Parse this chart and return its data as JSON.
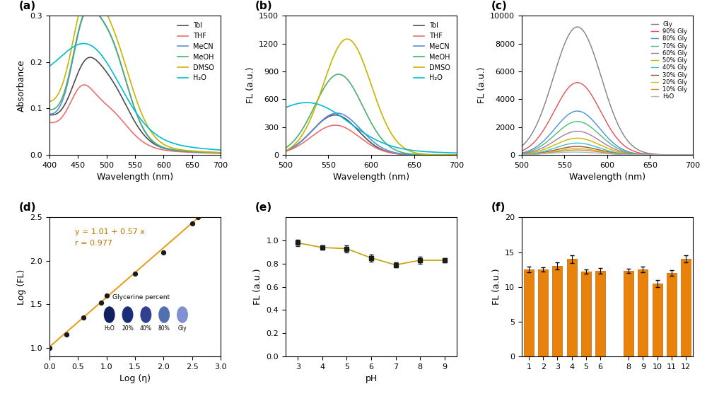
{
  "panel_labels": [
    "(a)",
    "(b)",
    "(c)",
    "(d)",
    "(e)",
    "(f)"
  ],
  "panel_a": {
    "xlabel": "Wavelength (nm)",
    "ylabel": "Absorbance",
    "xlim": [
      400,
      700
    ],
    "ylim": [
      0,
      0.3
    ],
    "yticks": [
      0.0,
      0.1,
      0.2,
      0.3
    ],
    "legend": [
      "Tol",
      "THF",
      "MeCN",
      "MeOH",
      "DMSO",
      "H₂O"
    ],
    "colors": [
      "#4d4d4d",
      "#e87070",
      "#5b8dd9",
      "#4caf6e",
      "#c8b400",
      "#00bcd4"
    ]
  },
  "panel_b": {
    "xlabel": "Wavelength (nm)",
    "ylabel": "FL (a.u.)",
    "xlim": [
      500,
      700
    ],
    "ylim": [
      0,
      1500
    ],
    "yticks": [
      0,
      300,
      600,
      900,
      1200,
      1500
    ],
    "legend": [
      "Tol",
      "THF",
      "MeCN",
      "MeOH",
      "DMSO",
      "H₂O"
    ],
    "colors": [
      "#4d4d4d",
      "#e87070",
      "#5b8dd9",
      "#4caf6e",
      "#c8b400",
      "#00bcd4"
    ]
  },
  "panel_c": {
    "xlabel": "Wavelength (nm)",
    "ylabel": "FL (a.u.)",
    "xlim": [
      500,
      700
    ],
    "ylim": [
      0,
      10000
    ],
    "yticks": [
      0,
      2000,
      4000,
      6000,
      8000,
      10000
    ],
    "legend": [
      "Gly",
      "90% Gly",
      "80% Gly",
      "70% Gly",
      "60% Gly",
      "50% Gly",
      "40% Gly",
      "30% Gly",
      "20% Gly",
      "10% Gly",
      "H₂O"
    ],
    "colors": [
      "#808080",
      "#e05050",
      "#4a90d9",
      "#50b878",
      "#b07898",
      "#c8b400",
      "#40c0c0",
      "#a05030",
      "#c8c030",
      "#d09030",
      "#a0b8d0"
    ]
  },
  "panel_d": {
    "xlabel": "Log (η)",
    "ylabel": "Log (FL)",
    "xlim": [
      0.0,
      3.0
    ],
    "ylim": [
      0.9,
      2.5
    ],
    "xticks": [
      0.0,
      0.5,
      1.0,
      1.5,
      2.0,
      2.5,
      3.0
    ],
    "yticks": [
      1.0,
      1.5,
      2.0,
      2.5
    ],
    "scatter_x": [
      0.0,
      0.3,
      0.6,
      0.9,
      1.0,
      1.5,
      2.0,
      2.5,
      2.6
    ],
    "scatter_y": [
      1.0,
      1.15,
      1.35,
      1.52,
      1.6,
      1.85,
      2.1,
      2.43,
      2.5
    ],
    "line_x": [
      0.0,
      2.7
    ],
    "line_y": [
      1.01,
      2.55
    ],
    "equation": "y = 1.01 + 0.57 x",
    "r_value": "r = 0.977",
    "line_color": "#e8a020",
    "scatter_color": "#1a1a1a",
    "glycerine_label": "Glycerine percent",
    "glycerine_percents": [
      "H₂O",
      "20%",
      "40%",
      "80%",
      "Gly"
    ],
    "glycerine_colors": [
      "#102060",
      "#1a2d7a",
      "#304090",
      "#5070b0",
      "#8090d0"
    ]
  },
  "panel_e": {
    "xlabel": "pH",
    "ylabel": "FL (a.u.)",
    "xlim": [
      2.5,
      9.5
    ],
    "ylim": [
      0.0,
      1.2
    ],
    "xticks": [
      3,
      4,
      5,
      6,
      7,
      8,
      9
    ],
    "yticks": [
      0.0,
      0.2,
      0.4,
      0.6,
      0.8,
      1.0
    ],
    "ph_x": [
      3,
      4,
      5,
      6,
      7,
      8,
      9
    ],
    "ph_y": [
      0.98,
      0.94,
      0.93,
      0.85,
      0.79,
      0.83,
      0.83
    ],
    "ph_err": [
      0.03,
      0.02,
      0.03,
      0.03,
      0.02,
      0.03,
      0.02
    ],
    "line_color": "#c8a000",
    "marker_color": "#1a1a1a"
  },
  "panel_f": {
    "xlabel": "",
    "ylabel": "FL (a.u.)",
    "xlim": [
      0.5,
      12.5
    ],
    "ylim": [
      0,
      20
    ],
    "xticks": [
      1,
      2,
      3,
      4,
      5,
      6,
      8,
      9,
      10,
      11,
      12
    ],
    "tick_labels": [
      "1",
      "2",
      "3",
      "4",
      "5",
      "6",
      "8",
      "9",
      "10",
      "11",
      "12"
    ],
    "yticks": [
      0,
      5,
      10,
      15,
      20
    ],
    "bar_x": [
      1,
      2,
      3,
      4,
      5,
      6,
      8,
      9,
      10,
      11,
      12
    ],
    "bar_y": [
      12.5,
      12.5,
      13.0,
      14.0,
      12.2,
      12.3,
      12.3,
      12.5,
      10.5,
      12.0,
      14.0
    ],
    "bar_err": [
      0.4,
      0.3,
      0.5,
      0.6,
      0.3,
      0.4,
      0.3,
      0.4,
      0.5,
      0.4,
      0.5
    ],
    "bar_color": "#e8820a",
    "bar_edge": "#c06000"
  },
  "background_color": "#ffffff"
}
